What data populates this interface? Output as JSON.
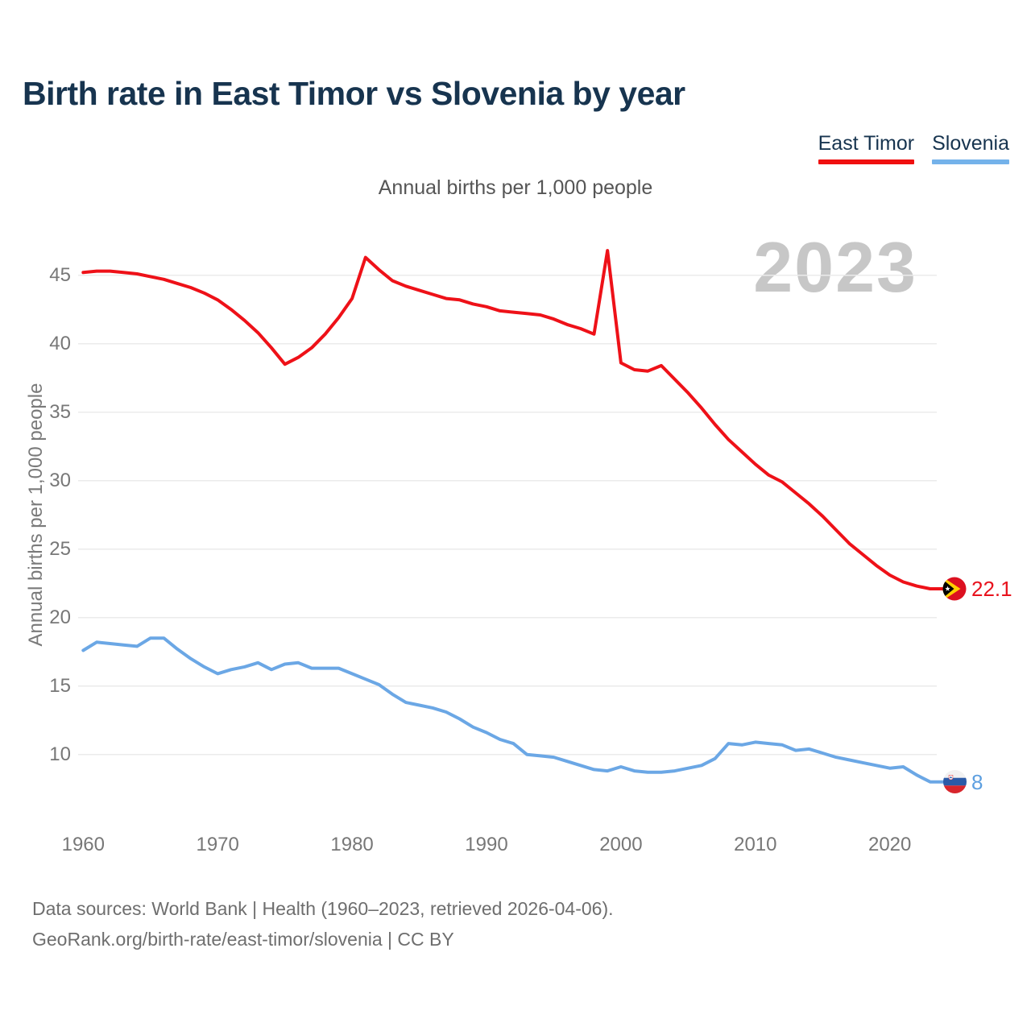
{
  "title": "Birth rate in East Timor vs Slovenia by year",
  "subtitle": "Annual births per 1,000 people",
  "watermark": "2023",
  "y_axis_title": "Annual births per 1,000 people",
  "legend": {
    "items": [
      {
        "label": "East Timor",
        "color": "#ee1111"
      },
      {
        "label": "Slovenia",
        "color": "#74b2ea"
      }
    ]
  },
  "footer": {
    "line1": "Data sources: World Bank | Health (1960–2023, retrieved 2026-04-06).",
    "line2": "GeoRank.org/birth-rate/east-timor/slovenia | CC BY"
  },
  "chart_data": {
    "type": "line",
    "title": "Birth rate in East Timor vs Slovenia by year",
    "subtitle": "Annual births per 1,000 people",
    "ylabel": "Annual births per 1,000 people",
    "xlabel": "",
    "grid": "horizontal",
    "legend_position": "top-right",
    "xlim": [
      1960,
      2023
    ],
    "ylim": [
      7,
      47.5
    ],
    "x_ticks": [
      1960,
      1970,
      1980,
      1990,
      2000,
      2010,
      2020
    ],
    "y_ticks": [
      45,
      40,
      35,
      30,
      25,
      20,
      15,
      10
    ],
    "x": [
      1960,
      1961,
      1962,
      1963,
      1964,
      1965,
      1966,
      1967,
      1968,
      1969,
      1970,
      1971,
      1972,
      1973,
      1974,
      1975,
      1976,
      1977,
      1978,
      1979,
      1980,
      1981,
      1982,
      1983,
      1984,
      1985,
      1986,
      1987,
      1988,
      1989,
      1990,
      1991,
      1992,
      1993,
      1994,
      1995,
      1996,
      1997,
      1998,
      1999,
      2000,
      2001,
      2002,
      2003,
      2004,
      2005,
      2006,
      2007,
      2008,
      2009,
      2010,
      2011,
      2012,
      2013,
      2014,
      2015,
      2016,
      2017,
      2018,
      2019,
      2020,
      2021,
      2022,
      2023
    ],
    "series": [
      {
        "name": "East Timor",
        "color": "#ee1118",
        "values": [
          45.2,
          45.3,
          45.3,
          45.2,
          45.1,
          44.9,
          44.7,
          44.4,
          44.1,
          43.7,
          43.2,
          42.5,
          41.7,
          40.8,
          39.7,
          38.5,
          39.0,
          39.7,
          40.7,
          41.9,
          43.3,
          46.3,
          45.4,
          44.6,
          44.2,
          43.9,
          43.6,
          43.3,
          43.2,
          42.9,
          42.7,
          42.4,
          42.3,
          42.2,
          42.1,
          41.8,
          41.4,
          41.1,
          40.7,
          46.8,
          38.6,
          38.1,
          38.0,
          38.4,
          37.4,
          36.4,
          35.3,
          34.1,
          33.0,
          32.1,
          31.2,
          30.4,
          29.9,
          29.1,
          28.3,
          27.4,
          26.4,
          25.4,
          24.6,
          23.8,
          23.1,
          22.6,
          22.3,
          22.1
        ]
      },
      {
        "name": "Slovenia",
        "color": "#6ba7e5",
        "values": [
          17.6,
          18.2,
          18.1,
          18.0,
          17.9,
          18.5,
          18.5,
          17.7,
          17.0,
          16.4,
          15.9,
          16.2,
          16.4,
          16.7,
          16.2,
          16.6,
          16.7,
          16.3,
          16.3,
          16.3,
          15.9,
          15.5,
          15.1,
          14.4,
          13.8,
          13.6,
          13.4,
          13.1,
          12.6,
          12.0,
          11.6,
          11.1,
          10.8,
          10.0,
          9.9,
          9.8,
          9.5,
          9.2,
          8.9,
          8.8,
          9.1,
          8.8,
          8.7,
          8.7,
          8.8,
          9.0,
          9.2,
          9.7,
          10.8,
          10.7,
          10.9,
          10.8,
          10.7,
          10.3,
          10.4,
          10.1,
          9.8,
          9.6,
          9.4,
          9.2,
          9.0,
          9.1,
          8.5,
          8.0
        ]
      }
    ],
    "end_labels": [
      {
        "series": "East Timor",
        "text": "22.1",
        "year": 2023
      },
      {
        "series": "Slovenia",
        "text": "8",
        "year": 2023
      }
    ]
  }
}
